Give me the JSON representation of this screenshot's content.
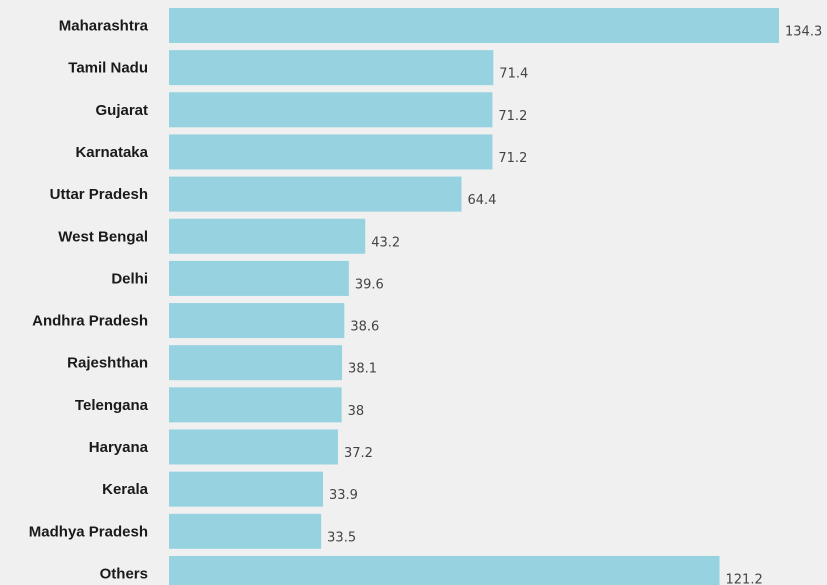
{
  "chart_data": {
    "type": "bar",
    "orientation": "horizontal",
    "categories": [
      "Maharashtra",
      "Tamil Nadu",
      "Gujarat",
      "Karnataka",
      "Uttar Pradesh",
      "West Bengal",
      "Delhi",
      "Andhra Pradesh",
      "Rajeshthan",
      "Telengana",
      "Haryana",
      "Kerala",
      "Madhya Pradesh",
      "Others"
    ],
    "values": [
      134.3,
      71.4,
      71.2,
      71.2,
      64.4,
      43.2,
      39.6,
      38.6,
      38.1,
      38,
      37.2,
      33.9,
      33.5,
      121.2
    ],
    "value_labels": [
      "134.3",
      "71.4",
      "71.2",
      "71.2",
      "64.4",
      "43.2",
      "39.6",
      "38.6",
      "38.1",
      "38",
      "37.2",
      "33.9",
      "33.5",
      "121.2"
    ],
    "title": "",
    "xlabel": "",
    "ylabel": "",
    "xlim": [
      0,
      134.3
    ],
    "grid": false,
    "legend": "none",
    "colors": {
      "bar": "#96d2df",
      "background": "#f0f0f0",
      "category_text": "#1a1a1a",
      "value_text": "#444444"
    }
  }
}
